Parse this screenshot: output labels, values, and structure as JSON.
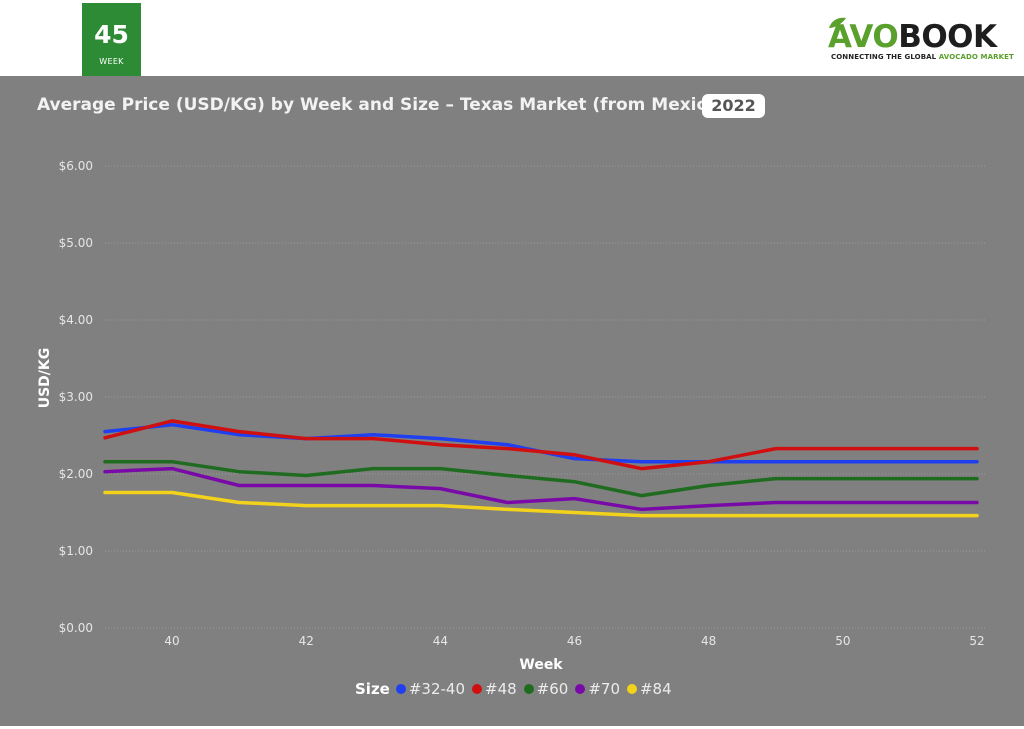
{
  "week_badge": {
    "number": "45",
    "label": "WEEK"
  },
  "logo": {
    "part1": "AVO",
    "part2": "BOOK",
    "tagline_part1": "CONNECTING THE GLOBAL ",
    "tagline_part2": "AVOCADO MARKET"
  },
  "header": {
    "title": "Average Price (USD/KG) by Week and Size – Texas Market (from Mexico)",
    "year": "2022"
  },
  "colors": {
    "panel_bg": "#808080",
    "badge_green": "#2e8b35",
    "logo_green": "#5aa02c"
  },
  "chart_data": {
    "type": "line",
    "title": "Average Price (USD/KG) by Week and Size – Texas Market (from Mexico)",
    "xlabel": "Week",
    "ylabel": "USD/KG",
    "x": [
      39,
      40,
      41,
      42,
      43,
      44,
      45,
      46,
      47,
      48,
      49,
      50,
      51,
      52
    ],
    "xlim": [
      39,
      52
    ],
    "ylim": [
      0,
      6
    ],
    "x_ticks": [
      40,
      42,
      44,
      46,
      48,
      50,
      52
    ],
    "y_ticks": [
      0,
      1,
      2,
      3,
      4,
      5,
      6
    ],
    "y_tick_labels": [
      "$0.00",
      "$1.00",
      "$2.00",
      "$3.00",
      "$4.00",
      "$5.00",
      "$6.00"
    ],
    "grid": true,
    "legend_title": "Size",
    "legend_position": "bottom",
    "series": [
      {
        "name": "#32-40",
        "color": "#1f3ff0",
        "values": [
          2.55,
          2.64,
          2.51,
          2.46,
          2.51,
          2.46,
          2.38,
          2.2,
          2.16,
          2.16,
          2.16,
          2.16,
          2.16,
          2.16
        ]
      },
      {
        "name": "#48",
        "color": "#d01010",
        "values": [
          2.47,
          2.69,
          2.55,
          2.46,
          2.46,
          2.38,
          2.33,
          2.25,
          2.07,
          2.16,
          2.33,
          2.33,
          2.33,
          2.33
        ]
      },
      {
        "name": "#60",
        "color": "#1f6b1f",
        "values": [
          2.16,
          2.16,
          2.03,
          1.98,
          2.07,
          2.07,
          1.98,
          1.9,
          1.72,
          1.85,
          1.94,
          1.94,
          1.94,
          1.94
        ]
      },
      {
        "name": "#70",
        "color": "#7a0aa8",
        "values": [
          2.03,
          2.07,
          1.85,
          1.85,
          1.85,
          1.81,
          1.63,
          1.68,
          1.54,
          1.59,
          1.63,
          1.63,
          1.63,
          1.63
        ]
      },
      {
        "name": "#84",
        "color": "#f2d21a",
        "values": [
          1.76,
          1.76,
          1.63,
          1.59,
          1.59,
          1.59,
          1.54,
          1.5,
          1.46,
          1.46,
          1.46,
          1.46,
          1.46,
          1.46
        ]
      }
    ]
  }
}
